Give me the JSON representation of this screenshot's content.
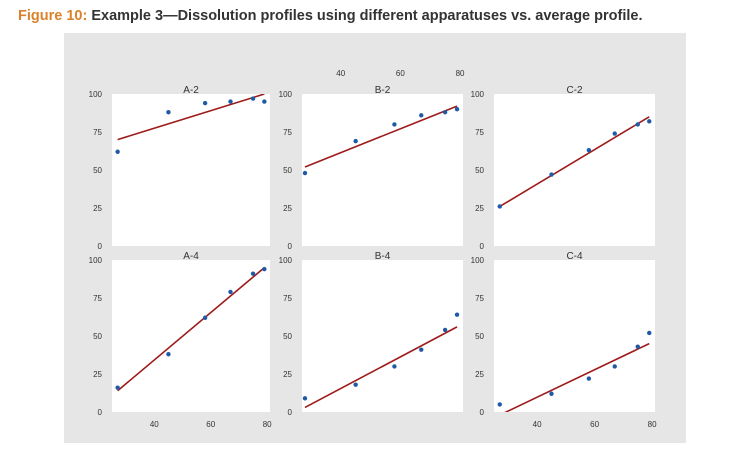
{
  "figure": {
    "label": "Figure 10:",
    "caption": "Example 3—Dissolution profiles using different apparatuses vs. average profile."
  },
  "colors": {
    "point": "#1f5aa6",
    "line": "#9e1b1b",
    "title_label": "#d9822b",
    "panel_background": "#e6e6e6",
    "plot_background": "#ffffff"
  },
  "chart_data": [
    {
      "type": "scatter",
      "title": "A-2",
      "xlim": [
        25,
        81
      ],
      "ylim": [
        0,
        100
      ],
      "x_ticks": [],
      "y_ticks": [
        0,
        25,
        50,
        75,
        100
      ],
      "points": [
        [
          27,
          62
        ],
        [
          45,
          88
        ],
        [
          58,
          94
        ],
        [
          67,
          95
        ],
        [
          75,
          97
        ],
        [
          79,
          95
        ]
      ],
      "fit": [
        [
          27,
          70
        ],
        [
          79,
          100
        ]
      ]
    },
    {
      "type": "scatter",
      "title": "B-2",
      "xlim": [
        27,
        81
      ],
      "ylim": [
        0,
        100
      ],
      "x_ticks": [
        40,
        60,
        80
      ],
      "y_ticks": [
        0,
        25,
        50,
        75,
        100
      ],
      "points": [
        [
          28,
          48
        ],
        [
          45,
          69
        ],
        [
          58,
          80
        ],
        [
          67,
          86
        ],
        [
          75,
          88
        ],
        [
          79,
          90
        ]
      ],
      "fit": [
        [
          28,
          52
        ],
        [
          79,
          92
        ]
      ]
    },
    {
      "type": "scatter",
      "title": "C-2",
      "xlim": [
        25,
        81
      ],
      "ylim": [
        0,
        100
      ],
      "x_ticks": [],
      "y_ticks": [
        0,
        25,
        50,
        75,
        100
      ],
      "points": [
        [
          27,
          26
        ],
        [
          45,
          47
        ],
        [
          58,
          63
        ],
        [
          67,
          74
        ],
        [
          75,
          80
        ],
        [
          79,
          82
        ]
      ],
      "fit": [
        [
          27,
          26
        ],
        [
          79,
          85
        ]
      ]
    },
    {
      "type": "scatter",
      "title": "A-4",
      "xlim": [
        25,
        81
      ],
      "ylim": [
        0,
        100
      ],
      "x_ticks": [
        40,
        60,
        80
      ],
      "y_ticks": [
        0,
        25,
        50,
        75,
        100
      ],
      "points": [
        [
          27,
          16
        ],
        [
          45,
          38
        ],
        [
          58,
          62
        ],
        [
          67,
          79
        ],
        [
          75,
          91
        ],
        [
          79,
          94
        ]
      ],
      "fit": [
        [
          27,
          14
        ],
        [
          79,
          95
        ]
      ]
    },
    {
      "type": "scatter",
      "title": "B-4",
      "xlim": [
        27,
        81
      ],
      "ylim": [
        0,
        100
      ],
      "x_ticks": [],
      "y_ticks": [
        0,
        25,
        50,
        75,
        100
      ],
      "points": [
        [
          28,
          9
        ],
        [
          45,
          18
        ],
        [
          58,
          30
        ],
        [
          67,
          41
        ],
        [
          75,
          54
        ],
        [
          79,
          64
        ]
      ],
      "fit": [
        [
          28,
          3
        ],
        [
          79,
          56
        ]
      ]
    },
    {
      "type": "scatter",
      "title": "C-4",
      "xlim": [
        25,
        81
      ],
      "ylim": [
        0,
        100
      ],
      "x_ticks": [
        40,
        60,
        80
      ],
      "y_ticks": [
        0,
        25,
        50,
        75,
        100
      ],
      "points": [
        [
          27,
          5
        ],
        [
          45,
          12
        ],
        [
          58,
          22
        ],
        [
          67,
          30
        ],
        [
          75,
          43
        ],
        [
          79,
          52
        ]
      ],
      "fit": [
        [
          27,
          -2
        ],
        [
          79,
          45
        ]
      ]
    }
  ]
}
